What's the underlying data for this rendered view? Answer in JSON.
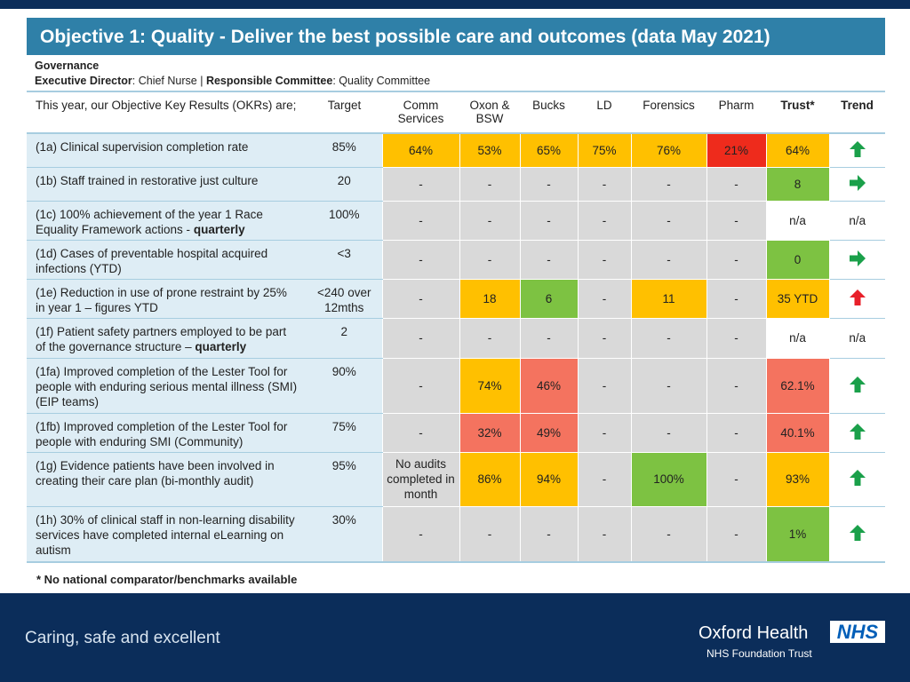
{
  "header": {
    "title": "Objective 1: Quality - Deliver the best possible care and outcomes (data May 2021)"
  },
  "governance": {
    "heading": "Governance",
    "director_label": "Executive Director",
    "director": ": Chief Nurse |",
    "committee_label": "Responsible Committee",
    "committee": ": Quality Committee"
  },
  "table": {
    "columns": [
      "This year, our Objective Key Results (OKRs) are;",
      "Target",
      "Comm Services",
      "Oxon & BSW",
      "Bucks",
      "LD",
      "Forensics",
      "Pharm",
      "Trust*",
      "Trend"
    ],
    "rows": [
      {
        "okr": "(1a) Clinical supervision completion rate",
        "target": "85%",
        "cells": [
          {
            "text": "64%",
            "bg": "#ffc000"
          },
          {
            "text": "53%",
            "bg": "#ffc000"
          },
          {
            "text": "65%",
            "bg": "#ffc000"
          },
          {
            "text": "75%",
            "bg": "#ffc000"
          },
          {
            "text": "76%",
            "bg": "#ffc000"
          },
          {
            "text": "21%",
            "bg": "#ee2b1c"
          },
          {
            "text": "64%",
            "bg": "#ffc000"
          }
        ],
        "trend": {
          "arrow": "up",
          "color": "#1aa04a"
        }
      },
      {
        "okr": "(1b) Staff trained in restorative just culture",
        "target": "20",
        "cells": [
          {
            "text": "-"
          },
          {
            "text": "-"
          },
          {
            "text": "-"
          },
          {
            "text": "-"
          },
          {
            "text": "-"
          },
          {
            "text": "-"
          },
          {
            "text": "8",
            "bg": "#7dc242"
          }
        ],
        "trend": {
          "arrow": "right",
          "color": "#1aa04a"
        }
      },
      {
        "okr": "(1c) 100% achievement of the year 1 Race Equality Framework actions -",
        "okr_bold": "quarterly",
        "target": "100%",
        "cells": [
          {
            "text": "-"
          },
          {
            "text": "-"
          },
          {
            "text": "-"
          },
          {
            "text": "-"
          },
          {
            "text": "-"
          },
          {
            "text": "-"
          },
          {
            "text": "n/a"
          }
        ],
        "trend": "n/a"
      },
      {
        "okr": "(1d) Cases of preventable hospital acquired infections (YTD)",
        "target": "<3",
        "cells": [
          {
            "text": "-"
          },
          {
            "text": "-"
          },
          {
            "text": "-"
          },
          {
            "text": "-"
          },
          {
            "text": "-"
          },
          {
            "text": "-"
          },
          {
            "text": "0",
            "bg": "#7dc242"
          }
        ],
        "trend": {
          "arrow": "right",
          "color": "#1aa04a"
        }
      },
      {
        "okr": "(1e) Reduction in use of prone restraint by 25% in year 1 – figures YTD",
        "target": "<240 over 12mths",
        "cells": [
          {
            "text": "-"
          },
          {
            "text": "18",
            "bg": "#ffc000"
          },
          {
            "text": "6",
            "bg": "#7dc242"
          },
          {
            "text": "-"
          },
          {
            "text": "11",
            "bg": "#ffc000"
          },
          {
            "text": "-"
          },
          {
            "text": "35 YTD",
            "bg": "#ffc000"
          }
        ],
        "trend": {
          "arrow": "up",
          "color": "#e8202a"
        }
      },
      {
        "okr": "(1f) Patient safety partners employed to be part of the governance structure –",
        "okr_bold": "quarterly",
        "target": "2",
        "cells": [
          {
            "text": "-"
          },
          {
            "text": "-"
          },
          {
            "text": "-"
          },
          {
            "text": "-"
          },
          {
            "text": "-"
          },
          {
            "text": "-"
          },
          {
            "text": "n/a"
          }
        ],
        "trend": "n/a"
      },
      {
        "okr": "(1fa) Improved completion of the Lester Tool for people with enduring serious mental illness (SMI) (EIP teams)",
        "target": "90%",
        "cells": [
          {
            "text": "-"
          },
          {
            "text": "74%",
            "bg": "#ffc000"
          },
          {
            "text": "46%",
            "bg": "#f4735f"
          },
          {
            "text": "-"
          },
          {
            "text": "-"
          },
          {
            "text": "-"
          },
          {
            "text": "62.1%",
            "bg": "#f4735f"
          }
        ],
        "trend": {
          "arrow": "up",
          "color": "#1aa04a"
        }
      },
      {
        "okr": "(1fb) Improved completion of the Lester Tool for people with enduring SMI (Community)",
        "target": "75%",
        "cells": [
          {
            "text": "-"
          },
          {
            "text": "32%",
            "bg": "#f4735f"
          },
          {
            "text": "49%",
            "bg": "#f4735f"
          },
          {
            "text": "-"
          },
          {
            "text": "-"
          },
          {
            "text": "-"
          },
          {
            "text": "40.1%",
            "bg": "#f4735f"
          }
        ],
        "trend": {
          "arrow": "up",
          "color": "#1aa04a"
        }
      },
      {
        "okr": "(1g) Evidence patients have been involved in creating their care plan (bi-monthly audit)",
        "target": "95%",
        "cells": [
          {
            "text": "No audits completed in month"
          },
          {
            "text": "86%",
            "bg": "#ffc000"
          },
          {
            "text": "94%",
            "bg": "#ffc000"
          },
          {
            "text": "-"
          },
          {
            "text": "100%",
            "bg": "#7dc242"
          },
          {
            "text": "-"
          },
          {
            "text": "93%",
            "bg": "#ffc000"
          }
        ],
        "trend": {
          "arrow": "up",
          "color": "#1aa04a"
        }
      },
      {
        "okr": "(1h) 30% of clinical staff in non-learning disability services have completed internal eLearning on autism",
        "target": "30%",
        "cells": [
          {
            "text": "-"
          },
          {
            "text": "-"
          },
          {
            "text": "-"
          },
          {
            "text": "-"
          },
          {
            "text": "-"
          },
          {
            "text": "-"
          },
          {
            "text": "1%",
            "bg": "#7dc242"
          }
        ],
        "trend": {
          "arrow": "up",
          "color": "#1aa04a"
        }
      }
    ]
  },
  "footnote": "* No national comparator/benchmarks available",
  "footer": {
    "tagline": "Caring, safe and excellent",
    "org": "Oxford Health",
    "badge": "NHS",
    "trust": "NHS Foundation Trust"
  }
}
